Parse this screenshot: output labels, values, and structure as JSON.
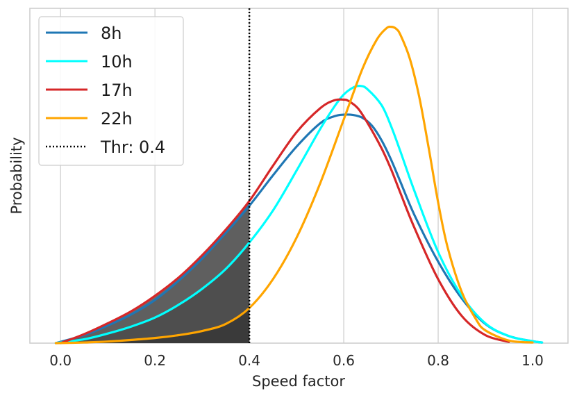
{
  "chart_data": {
    "type": "line",
    "title": "",
    "xlabel": "Speed factor",
    "ylabel": "Probability",
    "xlim": [
      -0.065,
      1.075
    ],
    "ylim": [
      0,
      1.0
    ],
    "x_ticks": [
      "0.0",
      "0.2",
      "0.4",
      "0.6",
      "0.8",
      "1.0"
    ],
    "x_tick_values": [
      0.0,
      0.2,
      0.4,
      0.6,
      0.8,
      1.0
    ],
    "grid": "vertical",
    "legend_position": "top-left",
    "threshold": {
      "name": "Thr: 0.4",
      "x": 0.4,
      "style": "dotted",
      "color": "#000000"
    },
    "shaded_region": "area under each curve for speed factor below threshold (grey levels)",
    "shade_colors": [
      "#3a3a3a",
      "#4e4e4e",
      "#5f5f5f",
      "#6d6d6d"
    ],
    "series": [
      {
        "name": "8h",
        "color": "#1f77b4",
        "x": [
          -0.01,
          0.05,
          0.1,
          0.15,
          0.2,
          0.25,
          0.3,
          0.35,
          0.4,
          0.45,
          0.5,
          0.55,
          0.58,
          0.6,
          0.62,
          0.64,
          0.66,
          0.68,
          0.7,
          0.72,
          0.75,
          0.8,
          0.85,
          0.9,
          0.95,
          1.0,
          1.02
        ],
        "y": [
          0.0,
          0.025,
          0.055,
          0.09,
          0.135,
          0.195,
          0.265,
          0.345,
          0.43,
          0.525,
          0.615,
          0.688,
          0.71,
          0.715,
          0.714,
          0.705,
          0.68,
          0.635,
          0.575,
          0.505,
          0.4,
          0.255,
          0.14,
          0.06,
          0.022,
          0.006,
          0.002
        ]
      },
      {
        "name": "10h",
        "color": "#00ffff",
        "x": [
          -0.01,
          0.05,
          0.1,
          0.15,
          0.2,
          0.25,
          0.3,
          0.35,
          0.4,
          0.45,
          0.5,
          0.55,
          0.58,
          0.6,
          0.62,
          0.635,
          0.65,
          0.68,
          0.7,
          0.72,
          0.75,
          0.8,
          0.85,
          0.9,
          0.95,
          1.0,
          1.02
        ],
        "y": [
          0.0,
          0.012,
          0.03,
          0.052,
          0.08,
          0.12,
          0.17,
          0.232,
          0.315,
          0.415,
          0.54,
          0.67,
          0.74,
          0.778,
          0.8,
          0.805,
          0.795,
          0.745,
          0.68,
          0.6,
          0.475,
          0.285,
          0.148,
          0.062,
          0.022,
          0.006,
          0.002
        ]
      },
      {
        "name": "17h",
        "color": "#d62728",
        "x": [
          0.0,
          0.05,
          0.1,
          0.15,
          0.2,
          0.25,
          0.3,
          0.35,
          0.4,
          0.45,
          0.5,
          0.55,
          0.58,
          0.6,
          0.61,
          0.63,
          0.65,
          0.68,
          0.7,
          0.72,
          0.75,
          0.8,
          0.85,
          0.9,
          0.95
        ],
        "y": [
          0.0,
          0.028,
          0.062,
          0.1,
          0.148,
          0.205,
          0.275,
          0.355,
          0.445,
          0.555,
          0.66,
          0.735,
          0.76,
          0.762,
          0.758,
          0.735,
          0.69,
          0.61,
          0.545,
          0.47,
          0.36,
          0.2,
          0.085,
          0.025,
          0.004
        ]
      },
      {
        "name": "22h",
        "color": "#ffa500",
        "x": [
          -0.01,
          0.05,
          0.1,
          0.15,
          0.2,
          0.25,
          0.3,
          0.35,
          0.4,
          0.45,
          0.5,
          0.55,
          0.6,
          0.64,
          0.67,
          0.69,
          0.7,
          0.71,
          0.72,
          0.74,
          0.76,
          0.78,
          0.8,
          0.82,
          0.85,
          0.88,
          0.9,
          0.95,
          1.0
        ],
        "y": [
          0.0,
          0.002,
          0.005,
          0.01,
          0.016,
          0.025,
          0.038,
          0.06,
          0.11,
          0.2,
          0.33,
          0.5,
          0.7,
          0.86,
          0.95,
          0.985,
          0.99,
          0.985,
          0.965,
          0.89,
          0.77,
          0.61,
          0.44,
          0.3,
          0.16,
          0.075,
          0.04,
          0.008,
          0.002
        ]
      }
    ]
  }
}
